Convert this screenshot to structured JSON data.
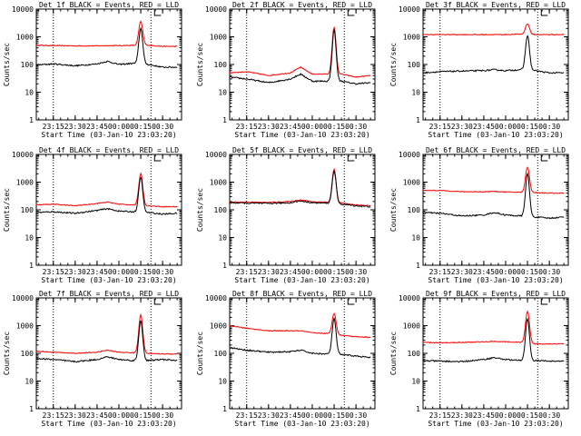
{
  "figure": {
    "ylabel": "Counts/sec",
    "xlabel": "Start Time (03-Jan-10 23:03:20)",
    "x_ticks": [
      "23:15",
      "23:30",
      "23:45",
      "00:00",
      "00:15",
      "00:30"
    ],
    "y_ticks": [
      "1",
      "10",
      "100",
      "1000",
      "10000"
    ],
    "colors": {
      "events": "#000000",
      "lld": "#ff0000",
      "axis": "#000000"
    }
  },
  "chart_data": [
    {
      "type": "line",
      "title": "Det 1f BLACK = Events, RED = LLD",
      "x": [
        "23:03",
        "23:15",
        "23:30",
        "23:45",
        "23:52",
        "00:00",
        "00:10",
        "00:15",
        "00:20",
        "00:30",
        "00:40"
      ],
      "xlim": [
        "23:03:20",
        "00:43"
      ],
      "ylim": [
        1,
        10000
      ],
      "yscale": "log",
      "vlines": [
        "23:15",
        "00:22"
      ],
      "series": [
        {
          "values": [
            95,
            105,
            90,
            105,
            130,
            100,
            110,
            2000,
            100,
            80,
            80
          ]
        },
        {
          "values": [
            500,
            480,
            470,
            470,
            480,
            480,
            490,
            3500,
            500,
            450,
            450
          ]
        }
      ]
    },
    {
      "type": "line",
      "title": "Det 2f BLACK = Events, RED = LLD",
      "x": [
        "23:03",
        "23:15",
        "23:30",
        "23:45",
        "23:52",
        "00:00",
        "00:10",
        "00:15",
        "00:20",
        "00:30",
        "00:40"
      ],
      "xlim": [
        "23:03:20",
        "00:43"
      ],
      "ylim": [
        1,
        10000
      ],
      "yscale": "log",
      "vlines": [
        "23:15",
        "00:22"
      ],
      "series": [
        {
          "values": [
            35,
            30,
            22,
            30,
            45,
            25,
            25,
            1700,
            25,
            20,
            22
          ]
        },
        {
          "values": [
            50,
            55,
            40,
            50,
            80,
            45,
            45,
            2200,
            45,
            35,
            40
          ]
        }
      ]
    },
    {
      "type": "line",
      "title": "Det 3f BLACK = Events, RED = LLD",
      "x": [
        "23:03",
        "23:15",
        "23:30",
        "23:45",
        "23:52",
        "00:00",
        "00:10",
        "00:15",
        "00:20",
        "00:30",
        "00:40"
      ],
      "xlim": [
        "23:03:20",
        "00:43"
      ],
      "ylim": [
        1,
        10000
      ],
      "yscale": "log",
      "vlines": [
        "23:15",
        "00:22"
      ],
      "series": [
        {
          "values": [
            50,
            55,
            58,
            60,
            65,
            60,
            65,
            1100,
            60,
            50,
            50
          ]
        },
        {
          "values": [
            1200,
            1200,
            1200,
            1200,
            1200,
            1200,
            1250,
            3000,
            1200,
            1200,
            1200
          ]
        }
      ]
    },
    {
      "type": "line",
      "title": "Det 4f BLACK = Events, RED = LLD",
      "x": [
        "23:03",
        "23:15",
        "23:30",
        "23:45",
        "23:52",
        "00:00",
        "00:10",
        "00:15",
        "00:20",
        "00:30",
        "00:40"
      ],
      "xlim": [
        "23:03:20",
        "00:43"
      ],
      "ylim": [
        1,
        10000
      ],
      "yscale": "log",
      "vlines": [
        "23:15",
        "00:22"
      ],
      "series": [
        {
          "values": [
            80,
            85,
            75,
            95,
            110,
            90,
            85,
            1500,
            80,
            70,
            75
          ]
        },
        {
          "values": [
            150,
            160,
            140,
            170,
            190,
            160,
            150,
            2000,
            140,
            130,
            130
          ]
        }
      ]
    },
    {
      "type": "line",
      "title": "Det 5f BLACK = Events, RED = LLD",
      "x": [
        "23:03",
        "23:15",
        "23:30",
        "23:45",
        "23:52",
        "00:00",
        "00:10",
        "00:15",
        "00:20",
        "00:30",
        "00:40"
      ],
      "xlim": [
        "23:03:20",
        "00:43"
      ],
      "ylim": [
        1,
        10000
      ],
      "yscale": "log",
      "vlines": [
        "23:15",
        "00:22"
      ],
      "series": [
        {
          "values": [
            180,
            175,
            170,
            180,
            210,
            180,
            175,
            2500,
            160,
            140,
            130
          ]
        },
        {
          "values": [
            190,
            190,
            185,
            200,
            230,
            195,
            190,
            2900,
            175,
            150,
            140
          ]
        }
      ]
    },
    {
      "type": "line",
      "title": "Det 6f BLACK = Events, RED = LLD",
      "x": [
        "23:03",
        "23:15",
        "23:30",
        "23:45",
        "23:52",
        "00:00",
        "00:10",
        "00:15",
        "00:20",
        "00:30",
        "00:40"
      ],
      "xlim": [
        "23:03:20",
        "00:43"
      ],
      "ylim": [
        1,
        10000
      ],
      "yscale": "log",
      "vlines": [
        "23:15",
        "00:22"
      ],
      "series": [
        {
          "values": [
            80,
            75,
            60,
            65,
            80,
            65,
            60,
            2000,
            55,
            50,
            55
          ]
        },
        {
          "values": [
            500,
            500,
            450,
            450,
            460,
            440,
            430,
            3500,
            420,
            400,
            400
          ]
        }
      ]
    },
    {
      "type": "line",
      "title": "Det 7f BLACK = Events, RED = LLD",
      "x": [
        "23:03",
        "23:15",
        "23:30",
        "23:45",
        "23:52",
        "00:00",
        "00:10",
        "00:15",
        "00:20",
        "00:30",
        "00:40"
      ],
      "xlim": [
        "23:03:20",
        "00:43"
      ],
      "ylim": [
        1,
        10000
      ],
      "yscale": "log",
      "vlines": [
        "23:15",
        "00:22"
      ],
      "series": [
        {
          "values": [
            65,
            60,
            50,
            60,
            75,
            60,
            55,
            1500,
            55,
            60,
            55
          ]
        },
        {
          "values": [
            120,
            110,
            100,
            110,
            130,
            110,
            105,
            2500,
            100,
            95,
            95
          ]
        }
      ]
    },
    {
      "type": "line",
      "title": "Det 8f BLACK = Events, RED = LLD",
      "x": [
        "23:03",
        "23:15",
        "23:30",
        "23:45",
        "23:52",
        "00:00",
        "00:10",
        "00:15",
        "00:20",
        "00:30",
        "00:40"
      ],
      "xlim": [
        "23:03:20",
        "00:43"
      ],
      "ylim": [
        1,
        10000
      ],
      "yscale": "log",
      "vlines": [
        "23:15",
        "00:22"
      ],
      "series": [
        {
          "values": [
            160,
            130,
            110,
            115,
            130,
            100,
            95,
            1800,
            90,
            80,
            70
          ]
        },
        {
          "values": [
            1000,
            800,
            650,
            650,
            650,
            550,
            520,
            2800,
            450,
            400,
            380
          ]
        }
      ]
    },
    {
      "type": "line",
      "title": "Det 9f BLACK = Events, RED = LLD",
      "x": [
        "23:03",
        "23:15",
        "23:30",
        "23:45",
        "23:52",
        "00:00",
        "00:10",
        "00:15",
        "00:20",
        "00:30",
        "00:40"
      ],
      "xlim": [
        "23:03:20",
        "00:43"
      ],
      "ylim": [
        1,
        10000
      ],
      "yscale": "log",
      "vlines": [
        "23:15",
        "00:22"
      ],
      "series": [
        {
          "values": [
            55,
            52,
            50,
            60,
            70,
            60,
            55,
            1800,
            55,
            52,
            52
          ]
        },
        {
          "values": [
            250,
            240,
            250,
            260,
            270,
            260,
            250,
            3200,
            220,
            220,
            220
          ]
        }
      ]
    }
  ]
}
